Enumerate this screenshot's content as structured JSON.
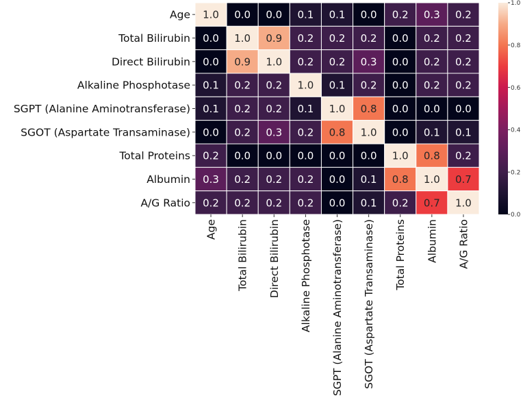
{
  "chart_data": {
    "type": "heatmap",
    "title": "",
    "xlabel": "",
    "ylabel": "",
    "colormap": "rocket",
    "x_labels": [
      "Age",
      "Total Bilirubin",
      "Direct Bilirubin",
      "Alkaline Phosphotase",
      "SGPT (Alanine Aminotransferase)",
      "SGOT (Aspartate Transaminase)",
      "Total Proteins",
      "Albumin",
      "A/G Ratio"
    ],
    "y_labels": [
      "Age",
      "Total Bilirubin",
      "Direct Bilirubin",
      "Alkaline Phosphotase",
      "SGPT (Alanine Aminotransferase)",
      "SGOT (Aspartate Transaminase)",
      "Total Proteins",
      "Albumin",
      "A/G Ratio"
    ],
    "values": [
      [
        1.0,
        0.0,
        0.0,
        0.1,
        0.1,
        0.0,
        0.2,
        0.3,
        0.2
      ],
      [
        0.0,
        1.0,
        0.9,
        0.2,
        0.2,
        0.2,
        0.0,
        0.2,
        0.2
      ],
      [
        0.0,
        0.9,
        1.0,
        0.2,
        0.2,
        0.3,
        0.0,
        0.2,
        0.2
      ],
      [
        0.1,
        0.2,
        0.2,
        1.0,
        0.1,
        0.2,
        0.0,
        0.2,
        0.2
      ],
      [
        0.1,
        0.2,
        0.2,
        0.1,
        1.0,
        0.8,
        0.0,
        0.0,
        0.0
      ],
      [
        0.0,
        0.2,
        0.3,
        0.2,
        0.8,
        1.0,
        0.0,
        0.1,
        0.1
      ],
      [
        0.2,
        0.0,
        0.0,
        0.0,
        0.0,
        0.0,
        1.0,
        0.8,
        0.2
      ],
      [
        0.3,
        0.2,
        0.2,
        0.2,
        0.0,
        0.1,
        0.8,
        1.0,
        0.7
      ],
      [
        0.2,
        0.2,
        0.2,
        0.2,
        0.0,
        0.1,
        0.2,
        0.7,
        1.0
      ]
    ],
    "annotations_format": "0.0",
    "vmin": 0.0,
    "vmax": 1.0,
    "colorbar": {
      "ticks": [
        0.0,
        0.2,
        0.4,
        0.6,
        0.8,
        1.0
      ],
      "tick_labels": [
        "0.0",
        "0.2",
        "0.4",
        "0.6",
        "0.8",
        "1.0"
      ],
      "position": "right"
    },
    "grid": false,
    "cell_border_color": "#ffffff"
  }
}
